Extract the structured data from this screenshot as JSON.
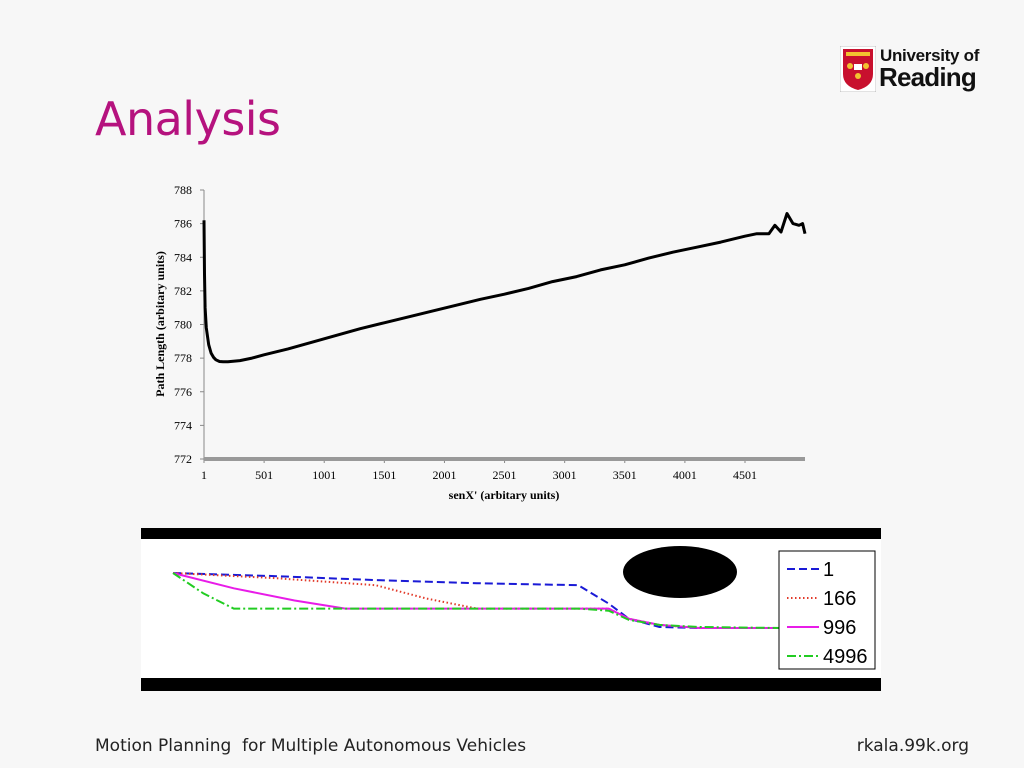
{
  "slide": {
    "title": "Analysis",
    "footer_left": "Motion Planning  for Multiple Autonomous Vehicles",
    "footer_right": "rkala.99k.org"
  },
  "logo": {
    "line1": "University of",
    "line2": "Reading",
    "shield_color": "#c8102e",
    "icon": "university-shield-icon"
  },
  "chart_data": [
    {
      "type": "line",
      "title": "",
      "xlabel": "senX' (arbitary units)",
      "ylabel": "Path Length (arbitary units)",
      "xlim": [
        1,
        5000
      ],
      "ylim": [
        772,
        788
      ],
      "xticks": [
        1,
        501,
        1001,
        1501,
        2001,
        2501,
        3001,
        3501,
        4001,
        4501
      ],
      "yticks": [
        772,
        774,
        776,
        778,
        780,
        782,
        784,
        786,
        788
      ],
      "legend": "none",
      "grid": false,
      "series": [
        {
          "color": "#000000",
          "x": [
            1,
            5,
            10,
            20,
            40,
            60,
            80,
            100,
            130,
            160,
            200,
            300,
            400,
            500,
            700,
            900,
            1100,
            1300,
            1500,
            1700,
            1900,
            2100,
            2300,
            2500,
            2700,
            2900,
            3100,
            3300,
            3500,
            3700,
            3900,
            4100,
            4300,
            4500,
            4600,
            4700,
            4750,
            4800,
            4850,
            4900,
            4950,
            4980,
            5000
          ],
          "y": [
            786.2,
            783.0,
            781.0,
            779.8,
            778.8,
            778.3,
            778.05,
            777.9,
            777.8,
            777.78,
            777.78,
            777.85,
            778.0,
            778.2,
            778.55,
            778.95,
            779.35,
            779.75,
            780.1,
            780.45,
            780.8,
            781.15,
            781.5,
            781.8,
            782.15,
            782.55,
            782.85,
            783.25,
            783.55,
            783.95,
            784.3,
            784.6,
            784.9,
            785.25,
            785.4,
            785.4,
            785.9,
            785.5,
            786.6,
            786.0,
            785.9,
            786.0,
            785.4
          ]
        }
      ]
    },
    {
      "type": "line",
      "title": "",
      "xlabel": "",
      "ylabel": "",
      "legend": "top-right",
      "grid": false,
      "series": [
        {
          "name": "1",
          "color": "#1a1ad6",
          "style": "dashed",
          "x": [
            0,
            100,
            200,
            300,
            400,
            430,
            450,
            480,
            520,
            600
          ],
          "y": [
            0,
            3,
            7,
            10,
            12,
            30,
            45,
            53,
            54,
            54
          ]
        },
        {
          "name": "166",
          "color": "#e23a2a",
          "style": "dotted",
          "x": [
            0,
            100,
            200,
            250,
            300,
            400,
            430,
            450,
            480,
            520,
            600
          ],
          "y": [
            0,
            5,
            12,
            25,
            35,
            35,
            35,
            45,
            51,
            54,
            54
          ]
        },
        {
          "name": "996",
          "color": "#e81ce8",
          "style": "solid",
          "x": [
            0,
            60,
            120,
            170,
            250,
            400,
            430,
            450,
            480,
            520,
            600
          ],
          "y": [
            0,
            15,
            27,
            35,
            35,
            35,
            35,
            45,
            51,
            54,
            54
          ]
        },
        {
          "name": "4996",
          "color": "#22cc22",
          "style": "dashdot",
          "x": [
            0,
            30,
            60,
            120,
            250,
            400,
            430,
            450,
            480,
            520,
            600
          ],
          "y": [
            0,
            20,
            35,
            35,
            35,
            35,
            37,
            46,
            51,
            53,
            54
          ]
        }
      ]
    }
  ]
}
